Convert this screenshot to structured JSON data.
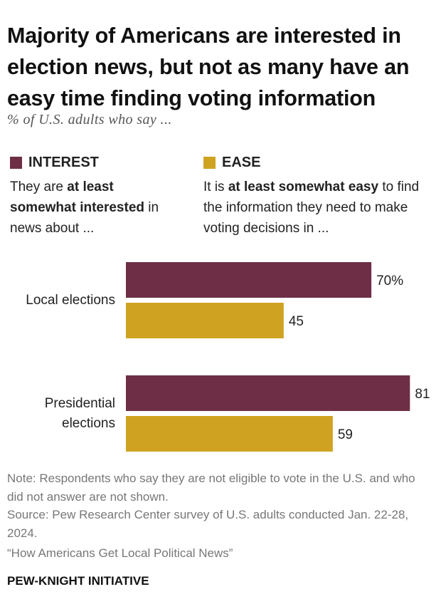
{
  "title": "Majority of Americans are interested in election news, but not as many have an easy time finding voting information",
  "subtitle": "% of U.S. adults who say ...",
  "legend": {
    "interest": {
      "name": "INTEREST",
      "color": "#6d2e46",
      "desc_pre": "They are ",
      "desc_bold": "at least somewhat interested",
      "desc_post": " in news about ..."
    },
    "ease": {
      "name": "EASE",
      "color": "#cfa321",
      "desc_pre": "It is ",
      "desc_bold": "at least somewhat easy",
      "desc_post": " to find the information they need to make voting decisions in ..."
    }
  },
  "chart_data": {
    "type": "bar",
    "orientation": "horizontal",
    "categories": [
      "Local elections",
      "Presidential elections"
    ],
    "series": [
      {
        "name": "INTEREST",
        "color": "#6d2e46",
        "values": [
          70,
          81
        ],
        "labels": [
          "70%",
          "81"
        ]
      },
      {
        "name": "EASE",
        "color": "#cfa321",
        "values": [
          45,
          59
        ],
        "labels": [
          "45",
          "59"
        ]
      }
    ],
    "xlim": [
      0,
      100
    ],
    "grid": false,
    "legend": "top"
  },
  "notes": {
    "note": "Note: Respondents who say they are not eligible to vote in the U.S. and who did not answer are not shown.",
    "source": "Source: Pew Research Center survey of U.S. adults conducted Jan. 22-28, 2024.",
    "report": "“How Americans Get Local Political News”"
  },
  "brand": "PEW-KNIGHT INITIATIVE"
}
